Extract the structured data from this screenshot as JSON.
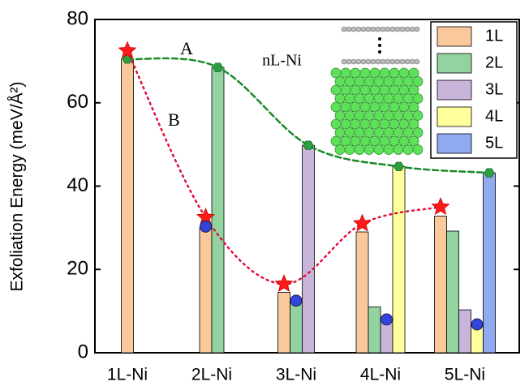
{
  "chart_data": {
    "type": "bar",
    "y_label": "Exfoliation Energy (meV/Å²)",
    "categories": [
      "1L-Ni",
      "2L-Ni",
      "3L-Ni",
      "4L-Ni",
      "5L-Ni"
    ],
    "series": [
      {
        "name": "1L",
        "color": "#f9c99c",
        "values": [
          70.5,
          30,
          14.5,
          29,
          32.8
        ]
      },
      {
        "name": "2L",
        "color": "#92d3a0",
        "values": [
          null,
          68.5,
          12.3,
          11,
          29.2
        ]
      },
      {
        "name": "3L",
        "color": "#c9b5da",
        "values": [
          null,
          null,
          49.8,
          8,
          10.3
        ]
      },
      {
        "name": "4L",
        "color": "#ffff9c",
        "values": [
          null,
          null,
          null,
          44.7,
          6.5
        ]
      },
      {
        "name": "5L",
        "color": "#8faaf0",
        "values": [
          null,
          null,
          null,
          null,
          43.2
        ]
      }
    ],
    "curves": [
      {
        "label": "A",
        "color": "#1a8a2a",
        "marker": "hexagon",
        "values": [
          70.5,
          68.5,
          49.8,
          44.7,
          43.2
        ]
      },
      {
        "label": "B",
        "color": "#e0103c",
        "marker": "star",
        "values": [
          72.5,
          32.5,
          16.5,
          31,
          35
        ]
      }
    ],
    "circles": {
      "color": "#3344dd",
      "values": [
        null,
        30.3,
        12.5,
        8,
        6.8
      ]
    },
    "inset_label": "nL-Ni",
    "ylim": [
      0,
      80
    ],
    "yticks": [
      0,
      20,
      40,
      60,
      80
    ]
  }
}
